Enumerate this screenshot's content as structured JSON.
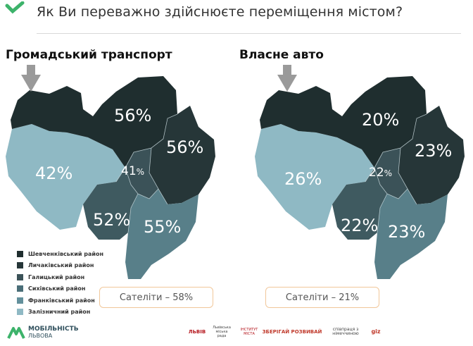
{
  "header": {
    "title": "Як Ви переважно здійснюєте переміщення містом?"
  },
  "left_map": {
    "title": "Громадський транспорт",
    "values": {
      "shevchenkivskyi": "56%",
      "lychakivskyi": "56%",
      "zaliznychnyi": "42%",
      "center_num": "41",
      "center_suffix": "%",
      "sykhivskyi": "55%",
      "frankivskyi": "52%"
    },
    "satellites": "Сателіти – 58%"
  },
  "right_map": {
    "title": "Власне авто",
    "values": {
      "shevchenkivskyi": "20%",
      "lychakivskyi": "23%",
      "zaliznychnyi": "26%",
      "center_num": "22",
      "center_suffix": "%",
      "sykhivskyi": "23%",
      "frankivskyi": "22%"
    },
    "satellites": "Сателіти – 21%"
  },
  "legend": [
    {
      "label": "Шевченківський район",
      "color": "#1f2e2f"
    },
    {
      "label": "Личаківський район",
      "color": "#263638"
    },
    {
      "label": "Галицький район",
      "color": "#3b5258"
    },
    {
      "label": "Сихівський район",
      "color": "#4a6e78"
    },
    {
      "label": "Франківський район",
      "color": "#63909c"
    },
    {
      "label": "Залізничний район",
      "color": "#8fb9c4"
    }
  ],
  "colors": {
    "shevchenko": "#1f2e2f",
    "lychakiv": "#263638",
    "halych": "#3b5258",
    "sykhiv": "#587f89",
    "frankiv": "#3f5a60",
    "zaliznych": "#8fb9c4",
    "arrow": "#9a9a9a",
    "brand_green": "#3db36b"
  },
  "footer": {
    "brand_line1": "МОБІЛЬНІСТЬ",
    "brand_line2": "ЛЬВОВА",
    "partners": [
      "ЛЬВІВ",
      "Львівська міська рада",
      "ІНСТИТУТ МІСТА",
      "ЗБЕРІГАЙ РОЗВИВАЙ",
      "співпраця з німеччиною",
      "giz"
    ]
  }
}
